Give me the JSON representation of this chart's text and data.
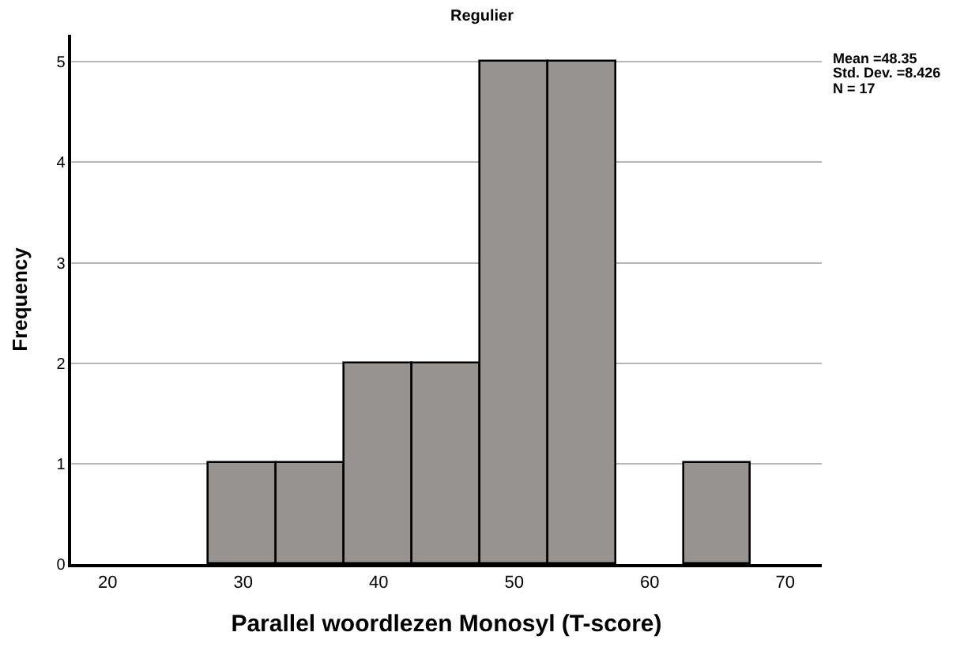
{
  "chart_data": {
    "type": "histogram",
    "title": "Regulier",
    "xlabel": "Parallel woordlezen Monosyl (T-score)",
    "ylabel": "Frequency",
    "bins": [
      27.5,
      32.5,
      37.5,
      42.5,
      47.5,
      52.5,
      57.5,
      62.5,
      67.5
    ],
    "values": [
      1,
      1,
      2,
      2,
      5,
      5,
      0,
      1
    ],
    "color": "#969391",
    "xlim": [
      17.3,
      72.7
    ],
    "xticks": [
      20,
      30,
      40,
      50,
      60,
      70
    ],
    "ylim": [
      0,
      5.27
    ],
    "yticks": [
      0,
      1,
      2,
      3,
      4,
      5
    ],
    "grid": "y",
    "annotations": [
      "Mean =48.35",
      "Std. Dev. =8.426",
      "N = 17"
    ]
  }
}
